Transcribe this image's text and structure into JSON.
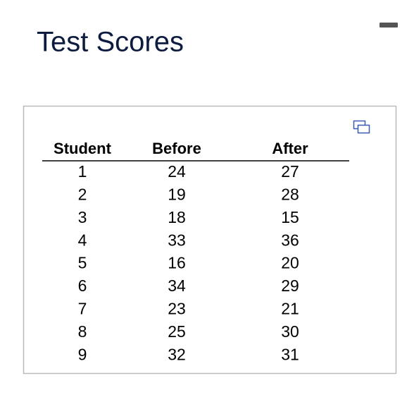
{
  "title": "Test Scores",
  "table": {
    "header": [
      "Student",
      "Before",
      "After"
    ],
    "rows": [
      [
        1,
        24,
        27
      ],
      [
        2,
        19,
        28
      ],
      [
        3,
        18,
        15
      ],
      [
        4,
        33,
        36
      ],
      [
        5,
        16,
        20
      ],
      [
        6,
        34,
        29
      ],
      [
        7,
        23,
        21
      ],
      [
        8,
        25,
        30
      ],
      [
        9,
        32,
        31
      ]
    ]
  }
}
